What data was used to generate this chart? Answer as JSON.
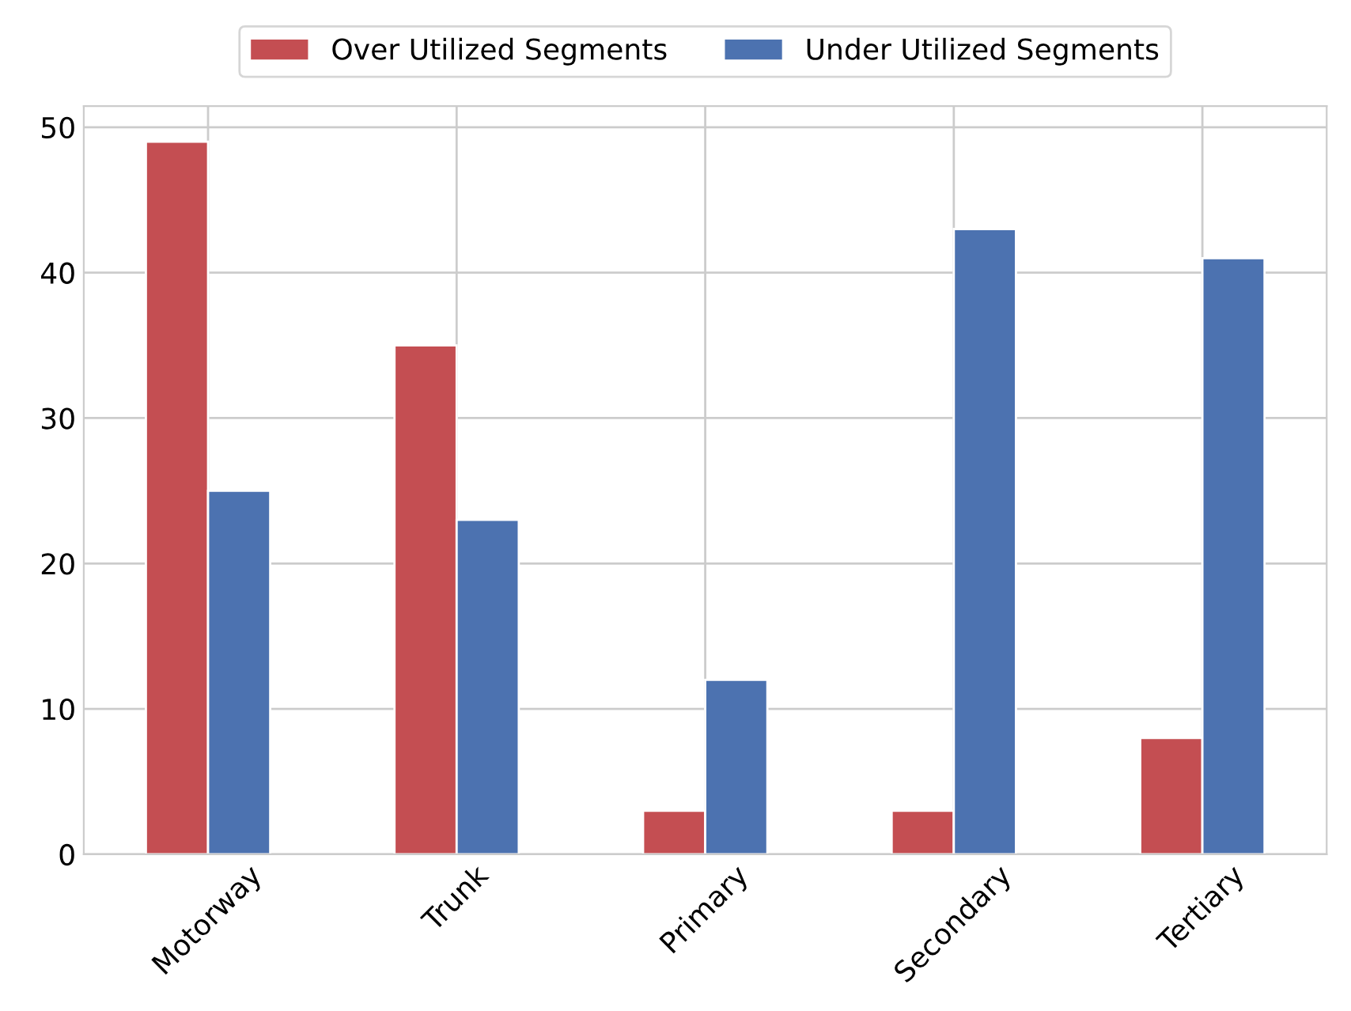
{
  "chart_data": {
    "type": "bar",
    "categories": [
      "Motorway",
      "Trunk",
      "Primary",
      "Secondary",
      "Tertiary"
    ],
    "series": [
      {
        "name": "Over Utilized Segments",
        "color": "#c44e52",
        "values": [
          49,
          35,
          3,
          3,
          8
        ]
      },
      {
        "name": "Under Utilized Segments",
        "color": "#4c72b0",
        "values": [
          25,
          23,
          12,
          43,
          41
        ]
      }
    ],
    "ylim": [
      0,
      51.45
    ],
    "yticks": [
      0,
      10,
      20,
      30,
      40,
      50
    ],
    "grid": true,
    "legend": "top"
  }
}
